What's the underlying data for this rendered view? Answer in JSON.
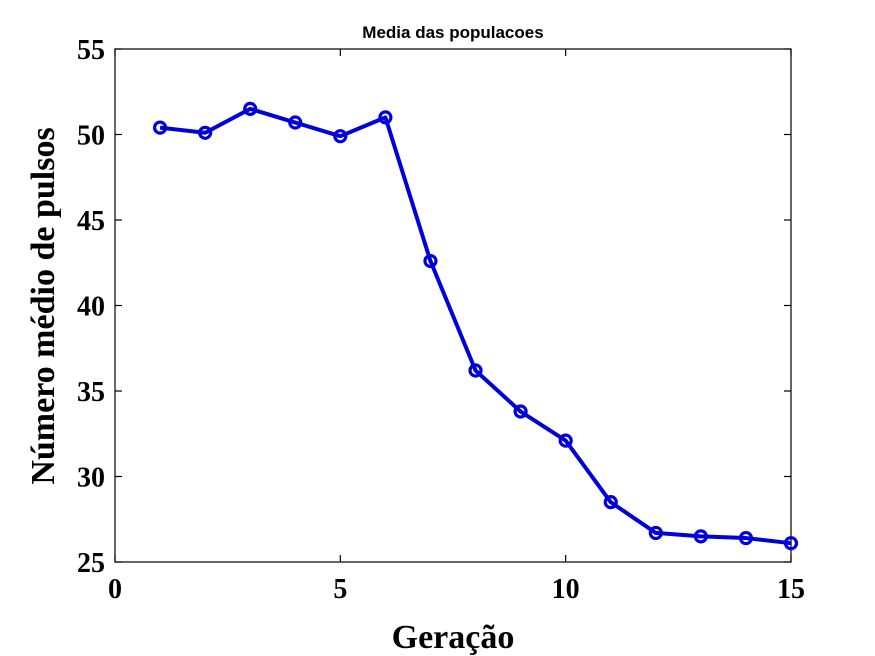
{
  "chart_data": {
    "type": "line",
    "title": "Media das populacoes",
    "xlabel": "Geração",
    "ylabel": "Número médio de pulsos",
    "xlim": [
      0,
      15
    ],
    "ylim": [
      25,
      55
    ],
    "xticks": [
      0,
      5,
      10,
      15
    ],
    "yticks": [
      25,
      30,
      35,
      40,
      45,
      50,
      55
    ],
    "grid": false,
    "color": "#0000dd",
    "series": [
      {
        "marker": "circle",
        "x": [
          1,
          2,
          3,
          4,
          5,
          6,
          7,
          8,
          9,
          10,
          11,
          12,
          13,
          14,
          15
        ],
        "y": [
          50.4,
          50.1,
          51.5,
          50.7,
          49.9,
          51.0,
          42.6,
          36.2,
          33.8,
          32.1,
          28.5,
          26.7,
          26.5,
          26.4,
          26.1
        ]
      }
    ]
  }
}
